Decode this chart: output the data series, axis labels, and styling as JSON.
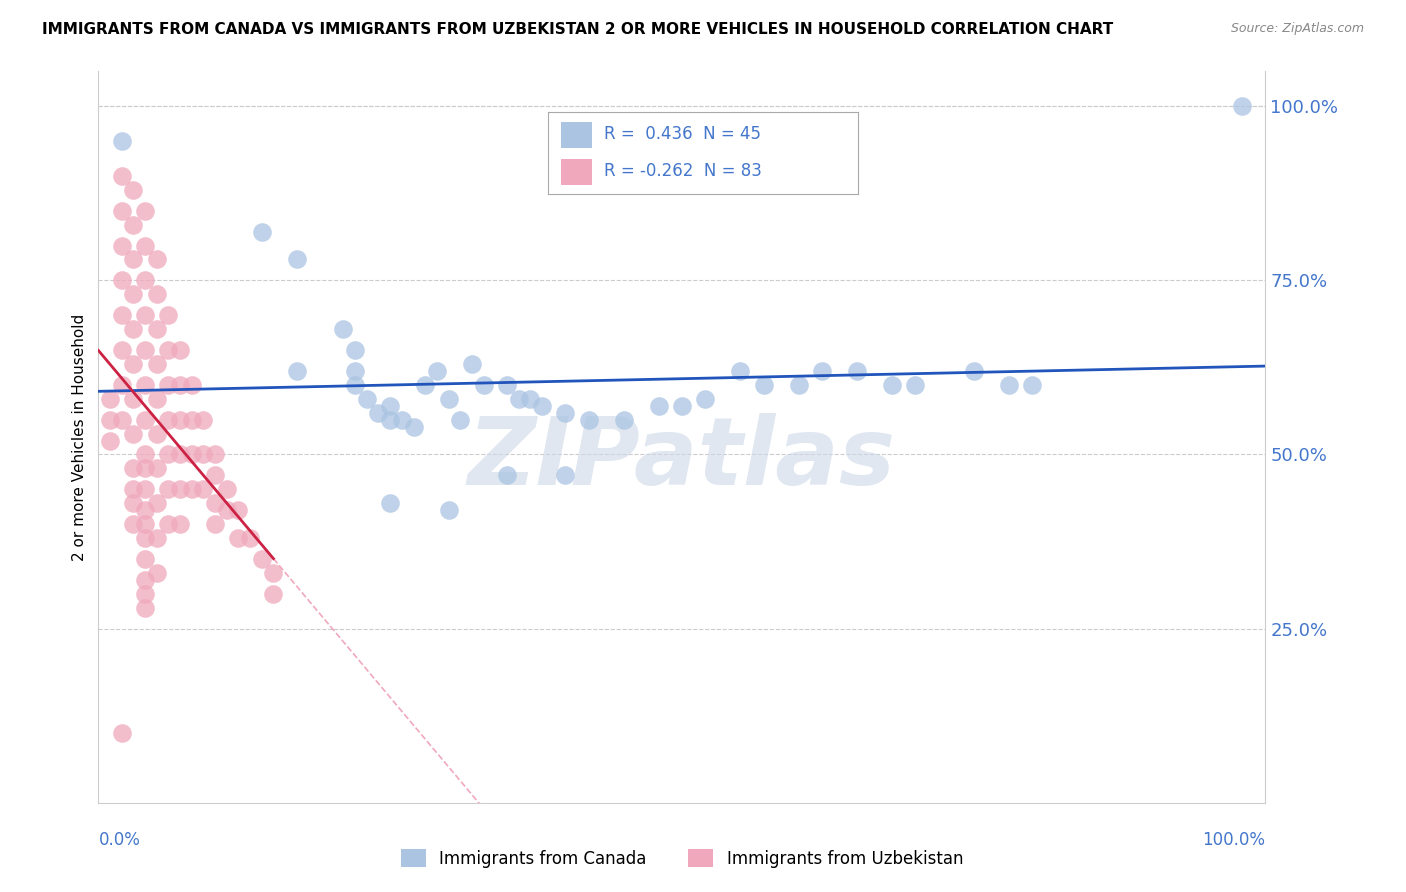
{
  "title": "IMMIGRANTS FROM CANADA VS IMMIGRANTS FROM UZBEKISTAN 2 OR MORE VEHICLES IN HOUSEHOLD CORRELATION CHART",
  "source": "Source: ZipAtlas.com",
  "ylabel": "2 or more Vehicles in Household",
  "canada_R": 0.436,
  "canada_N": 45,
  "uzbekistan_R": -0.262,
  "uzbekistan_N": 83,
  "canada_color": "#aac4e2",
  "uzbekistan_color": "#f0a8bc",
  "canada_line_color": "#2255bb",
  "uzbekistan_line_solid_color": "#cc2244",
  "uzbekistan_line_dashed_color": "#f0a8bc",
  "watermark_text": "ZIPatlas",
  "watermark_color": "#ccd8e8",
  "ytick_labels": [
    "25.0%",
    "50.0%",
    "75.0%",
    "100.0%"
  ],
  "ytick_values": [
    0.25,
    0.5,
    0.75,
    1.0
  ],
  "tick_color": "#4477cc",
  "xlim": [
    0.0,
    1.0
  ],
  "ylim": [
    0.0,
    1.05
  ],
  "canada_x": [
    0.02,
    0.14,
    0.17,
    0.17,
    0.21,
    0.22,
    0.22,
    0.22,
    0.23,
    0.24,
    0.25,
    0.25,
    0.26,
    0.27,
    0.28,
    0.29,
    0.3,
    0.31,
    0.32,
    0.33,
    0.35,
    0.36,
    0.37,
    0.38,
    0.4,
    0.42,
    0.45,
    0.48,
    0.5,
    0.52,
    0.55,
    0.57,
    0.6,
    0.62,
    0.65,
    0.68,
    0.7,
    0.75,
    0.78,
    0.8,
    0.25,
    0.3,
    0.35,
    0.4,
    0.98
  ],
  "canada_y": [
    0.95,
    0.82,
    0.78,
    0.62,
    0.68,
    0.65,
    0.62,
    0.6,
    0.58,
    0.56,
    0.57,
    0.55,
    0.55,
    0.54,
    0.6,
    0.62,
    0.58,
    0.55,
    0.63,
    0.6,
    0.6,
    0.58,
    0.58,
    0.57,
    0.56,
    0.55,
    0.55,
    0.57,
    0.57,
    0.58,
    0.62,
    0.6,
    0.6,
    0.62,
    0.62,
    0.6,
    0.6,
    0.62,
    0.6,
    0.6,
    0.43,
    0.42,
    0.47,
    0.47,
    1.0
  ],
  "uzbekistan_x": [
    0.01,
    0.01,
    0.01,
    0.02,
    0.02,
    0.02,
    0.02,
    0.02,
    0.02,
    0.02,
    0.02,
    0.03,
    0.03,
    0.03,
    0.03,
    0.03,
    0.03,
    0.03,
    0.03,
    0.03,
    0.03,
    0.03,
    0.03,
    0.04,
    0.04,
    0.04,
    0.04,
    0.04,
    0.04,
    0.04,
    0.04,
    0.04,
    0.04,
    0.04,
    0.04,
    0.04,
    0.04,
    0.04,
    0.04,
    0.04,
    0.05,
    0.05,
    0.05,
    0.05,
    0.05,
    0.05,
    0.05,
    0.05,
    0.05,
    0.05,
    0.06,
    0.06,
    0.06,
    0.06,
    0.06,
    0.06,
    0.06,
    0.07,
    0.07,
    0.07,
    0.07,
    0.07,
    0.07,
    0.08,
    0.08,
    0.08,
    0.08,
    0.09,
    0.09,
    0.09,
    0.1,
    0.1,
    0.1,
    0.1,
    0.11,
    0.11,
    0.12,
    0.12,
    0.13,
    0.14,
    0.15,
    0.15,
    0.02
  ],
  "uzbekistan_y": [
    0.58,
    0.55,
    0.52,
    0.9,
    0.85,
    0.8,
    0.75,
    0.7,
    0.65,
    0.6,
    0.55,
    0.88,
    0.83,
    0.78,
    0.73,
    0.68,
    0.63,
    0.58,
    0.53,
    0.48,
    0.45,
    0.43,
    0.4,
    0.85,
    0.8,
    0.75,
    0.7,
    0.65,
    0.6,
    0.55,
    0.5,
    0.48,
    0.45,
    0.42,
    0.4,
    0.38,
    0.35,
    0.32,
    0.3,
    0.28,
    0.78,
    0.73,
    0.68,
    0.63,
    0.58,
    0.53,
    0.48,
    0.43,
    0.38,
    0.33,
    0.7,
    0.65,
    0.6,
    0.55,
    0.5,
    0.45,
    0.4,
    0.65,
    0.6,
    0.55,
    0.5,
    0.45,
    0.4,
    0.6,
    0.55,
    0.5,
    0.45,
    0.55,
    0.5,
    0.45,
    0.5,
    0.47,
    0.43,
    0.4,
    0.45,
    0.42,
    0.42,
    0.38,
    0.38,
    0.35,
    0.33,
    0.3,
    0.1
  ]
}
